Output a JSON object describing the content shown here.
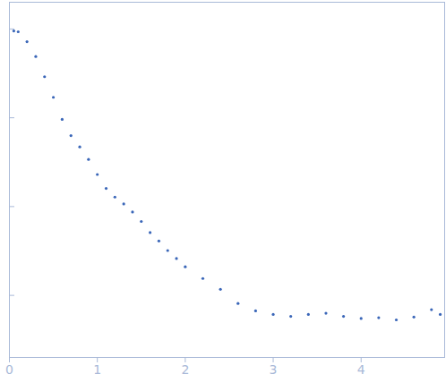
{
  "chart_data": {
    "type": "scatter",
    "x": [
      0.05,
      0.1,
      0.2,
      0.3,
      0.4,
      0.5,
      0.6,
      0.7,
      0.8,
      0.9,
      1.0,
      1.1,
      1.2,
      1.3,
      1.4,
      1.5,
      1.6,
      1.7,
      1.8,
      1.9,
      2.0,
      2.2,
      2.4,
      2.6,
      2.8,
      3.0,
      3.2,
      3.4,
      3.6,
      3.8,
      4.0,
      4.2,
      4.4,
      4.6,
      4.8,
      4.9
    ],
    "values": [
      0.95,
      0.93,
      0.72,
      0.49,
      0.29,
      0.17,
      0.096,
      0.063,
      0.047,
      0.034,
      0.023,
      0.016,
      0.0128,
      0.0107,
      0.0087,
      0.0068,
      0.0051,
      0.0041,
      0.0032,
      0.0026,
      0.0021,
      0.00155,
      0.00117,
      0.00081,
      0.00067,
      0.00061,
      0.00058,
      0.00061,
      0.00063,
      0.00058,
      0.00055,
      0.00056,
      0.00053,
      0.00057,
      0.00069,
      0.00061
    ],
    "color": "#3a66b8",
    "marker": "circle",
    "log": "y",
    "xlim": [
      0,
      4.95
    ],
    "xticks": [
      0,
      1,
      2,
      3,
      4
    ],
    "ylim": [
      0.0002,
      2
    ],
    "yticks": [
      0.001,
      0.01,
      0.1,
      1
    ],
    "tick_labels": "x",
    "grid": false
  }
}
